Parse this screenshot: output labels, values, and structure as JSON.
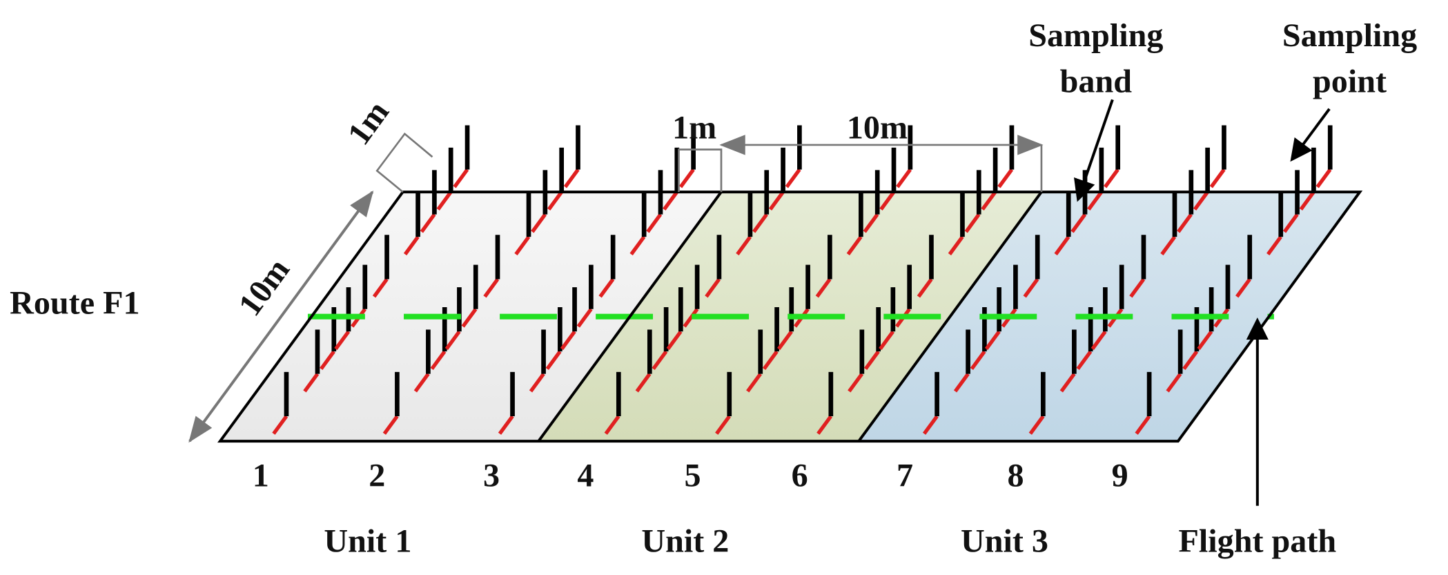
{
  "labels": {
    "route": "Route  F1",
    "width_left": "10m",
    "band_width": "1m",
    "gap": "1m",
    "unit_length": "10m",
    "sampling_band": [
      "Sampling",
      "band"
    ],
    "sampling_point": [
      "Sampling",
      "point"
    ],
    "flight_path": "Flight path",
    "bands": [
      "1",
      "2",
      "3",
      "4",
      "5",
      "6",
      "7",
      "8",
      "9"
    ],
    "units": [
      "Unit 1",
      "Unit 2",
      "Unit 3"
    ]
  }
}
